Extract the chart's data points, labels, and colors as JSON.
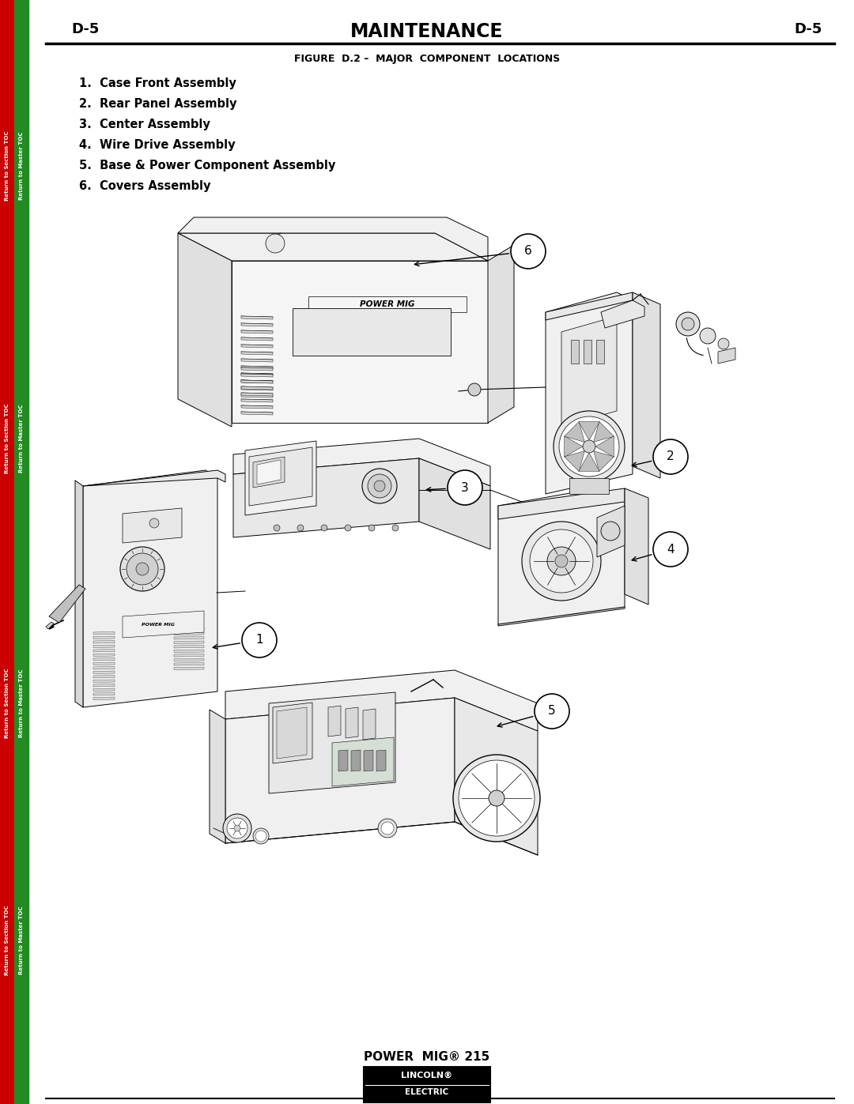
{
  "page_width": 10.8,
  "page_height": 13.97,
  "bg_color": "#ffffff",
  "header_text": "MAINTENANCE",
  "header_left": "D-5",
  "header_right": "D-5",
  "figure_title": "FIGURE  D.2 –  MAJOR  COMPONENT  LOCATIONS",
  "items": [
    "1.  Case Front Assembly",
    "2.  Rear Panel Assembly",
    "3.  Center Assembly",
    "4.  Wire Drive Assembly",
    "5.  Base & Power Component Assembly",
    "6.  Covers Assembly"
  ],
  "footer_model": "POWER  MIG® 215",
  "sidebar_red_color": "#cc0000",
  "sidebar_green_color": "#006600",
  "left_bar_red": "#cc0000",
  "left_bar_green": "#228B22",
  "sidebar_red_text": "Return to Section TOC",
  "sidebar_green_text": "Return to Master TOC"
}
